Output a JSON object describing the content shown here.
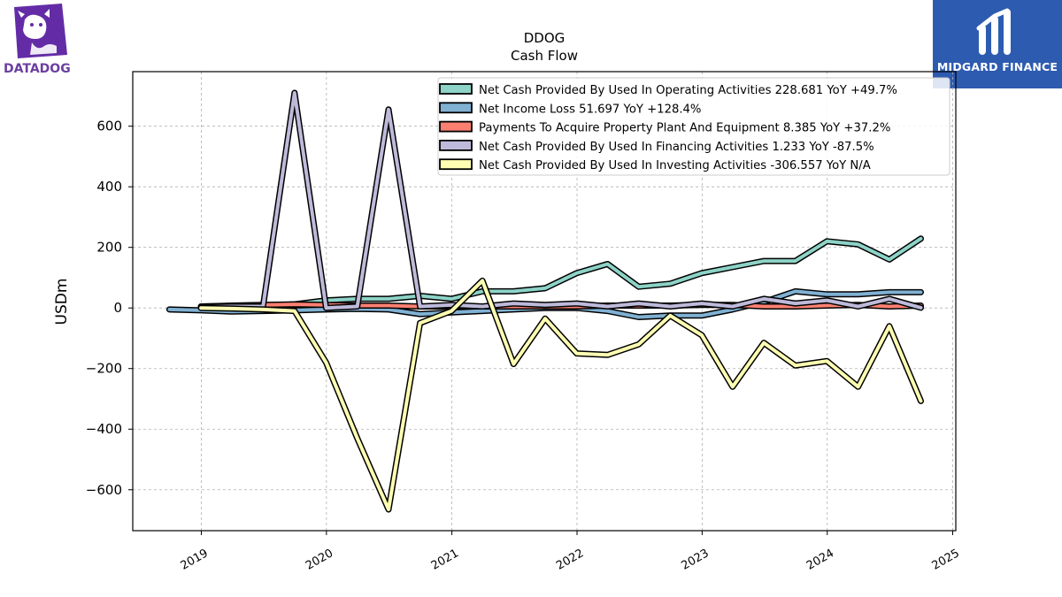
{
  "logos": {
    "left": {
      "name": "DATADOG",
      "color": "#632ca6"
    },
    "right": {
      "name": "MIDGARD FINANCE",
      "color": "#2d5bb0"
    }
  },
  "chart_data": {
    "type": "line",
    "title": "DDOG",
    "subtitle": "Cash Flow",
    "ylabel": "USDm",
    "xlabel": "",
    "xlim": [
      "2018-06-15",
      "2025-01-10"
    ],
    "ylim": [
      -735,
      780
    ],
    "yticks": [
      -600,
      -400,
      -200,
      0,
      200,
      400,
      600
    ],
    "ytick_labels": [
      "−600",
      "−400",
      "−200",
      "0",
      "200",
      "400",
      "600"
    ],
    "xticks": [
      "2019-01-01",
      "2020-01-01",
      "2021-01-01",
      "2022-01-01",
      "2023-01-01",
      "2024-01-01",
      "2025-01-01"
    ],
    "xtick_labels": [
      "2019",
      "2020",
      "2021",
      "2022",
      "2023",
      "2024",
      "2025"
    ],
    "grid": true,
    "legend_position": "top-right",
    "series": [
      {
        "name": "Net Cash Provided By Used In Operating Activities",
        "legend_label": "Net Cash Provided By Used In Operating Activities  228.681 YoY +49.7%",
        "color": "#8dd3c7",
        "x": [
          "2018-12-31",
          "2019-03-31",
          "2019-06-30",
          "2019-09-30",
          "2019-12-31",
          "2020-03-31",
          "2020-06-30",
          "2020-09-30",
          "2020-12-31",
          "2021-03-31",
          "2021-06-30",
          "2021-09-30",
          "2021-12-31",
          "2022-03-31",
          "2022-06-30",
          "2022-09-30",
          "2022-12-31",
          "2023-03-31",
          "2023-06-30",
          "2023-09-30",
          "2023-12-31",
          "2024-03-31",
          "2024-06-30",
          "2024-09-30"
        ],
        "values": [
          5,
          6,
          7,
          12,
          25,
          30,
          30,
          40,
          30,
          55,
          55,
          65,
          115,
          145,
          70,
          80,
          115,
          135,
          155,
          155,
          220,
          210,
          160,
          229
        ]
      },
      {
        "name": "Net Income Loss",
        "legend_label": "Net Income Loss  51.697 YoY +128.4%",
        "color": "#80b1d3",
        "x": [
          "2018-09-30",
          "2018-12-31",
          "2019-03-31",
          "2019-06-30",
          "2019-09-30",
          "2019-12-31",
          "2020-03-31",
          "2020-06-30",
          "2020-09-30",
          "2020-12-31",
          "2021-03-31",
          "2021-06-30",
          "2021-09-30",
          "2021-12-31",
          "2022-03-31",
          "2022-06-30",
          "2022-09-30",
          "2022-12-31",
          "2023-03-31",
          "2023-06-30",
          "2023-09-30",
          "2023-12-31",
          "2024-03-31",
          "2024-06-30",
          "2024-09-30"
        ],
        "values": [
          -5,
          -8,
          -12,
          -10,
          -8,
          -5,
          -3,
          -5,
          -20,
          -15,
          -10,
          -5,
          0,
          0,
          -10,
          -30,
          -25,
          -25,
          -5,
          20,
          55,
          45,
          45,
          52,
          52
        ]
      },
      {
        "name": "Payments To Acquire Property Plant And Equipment",
        "legend_label": "Payments To Acquire Property Plant And Equipment  8.385 YoY +37.2%",
        "color": "#fb8072",
        "x": [
          "2018-12-31",
          "2019-03-31",
          "2019-06-30",
          "2019-09-30",
          "2019-12-31",
          "2020-03-31",
          "2020-06-30",
          "2020-09-30",
          "2020-12-31",
          "2021-03-31",
          "2021-06-30",
          "2021-09-30",
          "2021-12-31",
          "2022-03-31",
          "2022-06-30",
          "2022-09-30",
          "2022-12-31",
          "2023-03-31",
          "2023-06-30",
          "2023-09-30",
          "2023-12-31",
          "2024-03-31",
          "2024-06-30",
          "2024-09-30"
        ],
        "values": [
          5,
          8,
          10,
          12,
          10,
          8,
          8,
          5,
          5,
          5,
          5,
          5,
          5,
          8,
          8,
          8,
          10,
          10,
          5,
          5,
          8,
          10,
          5,
          8
        ]
      },
      {
        "name": "Net Cash Provided By Used In Financing Activities",
        "legend_label": "Net Cash Provided By Used In Financing Activities  1.233 YoY -87.5%",
        "color": "#bebada",
        "x": [
          "2018-12-31",
          "2019-03-31",
          "2019-06-30",
          "2019-09-30",
          "2019-12-31",
          "2020-03-31",
          "2020-06-30",
          "2020-09-30",
          "2020-12-31",
          "2021-03-31",
          "2021-06-30",
          "2021-09-30",
          "2021-12-31",
          "2022-03-31",
          "2022-06-30",
          "2022-09-30",
          "2022-12-31",
          "2023-03-31",
          "2023-06-30",
          "2023-09-30",
          "2023-12-31",
          "2024-03-31",
          "2024-06-30",
          "2024-09-30"
        ],
        "values": [
          3,
          5,
          5,
          710,
          0,
          5,
          655,
          5,
          10,
          5,
          15,
          10,
          15,
          5,
          15,
          5,
          15,
          5,
          30,
          15,
          25,
          5,
          30,
          1
        ]
      },
      {
        "name": "Net Cash Provided By Used In Investing Activities",
        "legend_label": "Net Cash Provided By Used In Investing Activities  -306.557 YoY N/A",
        "color": "#ffffb3",
        "x": [
          "2018-12-31",
          "2019-03-31",
          "2019-06-30",
          "2019-09-30",
          "2019-12-31",
          "2020-03-31",
          "2020-06-30",
          "2020-09-30",
          "2020-12-31",
          "2021-03-31",
          "2021-06-30",
          "2021-09-30",
          "2021-12-31",
          "2022-03-31",
          "2022-06-30",
          "2022-09-30",
          "2022-12-31",
          "2023-03-31",
          "2023-06-30",
          "2023-09-30",
          "2023-12-31",
          "2024-03-31",
          "2024-06-30",
          "2024-09-30"
        ],
        "values": [
          0,
          -2,
          -5,
          -10,
          -180,
          -430,
          -665,
          -50,
          -10,
          90,
          -185,
          -35,
          -150,
          -155,
          -120,
          -25,
          -90,
          -260,
          -115,
          -190,
          -175,
          -260,
          -60,
          -307
        ]
      }
    ]
  }
}
